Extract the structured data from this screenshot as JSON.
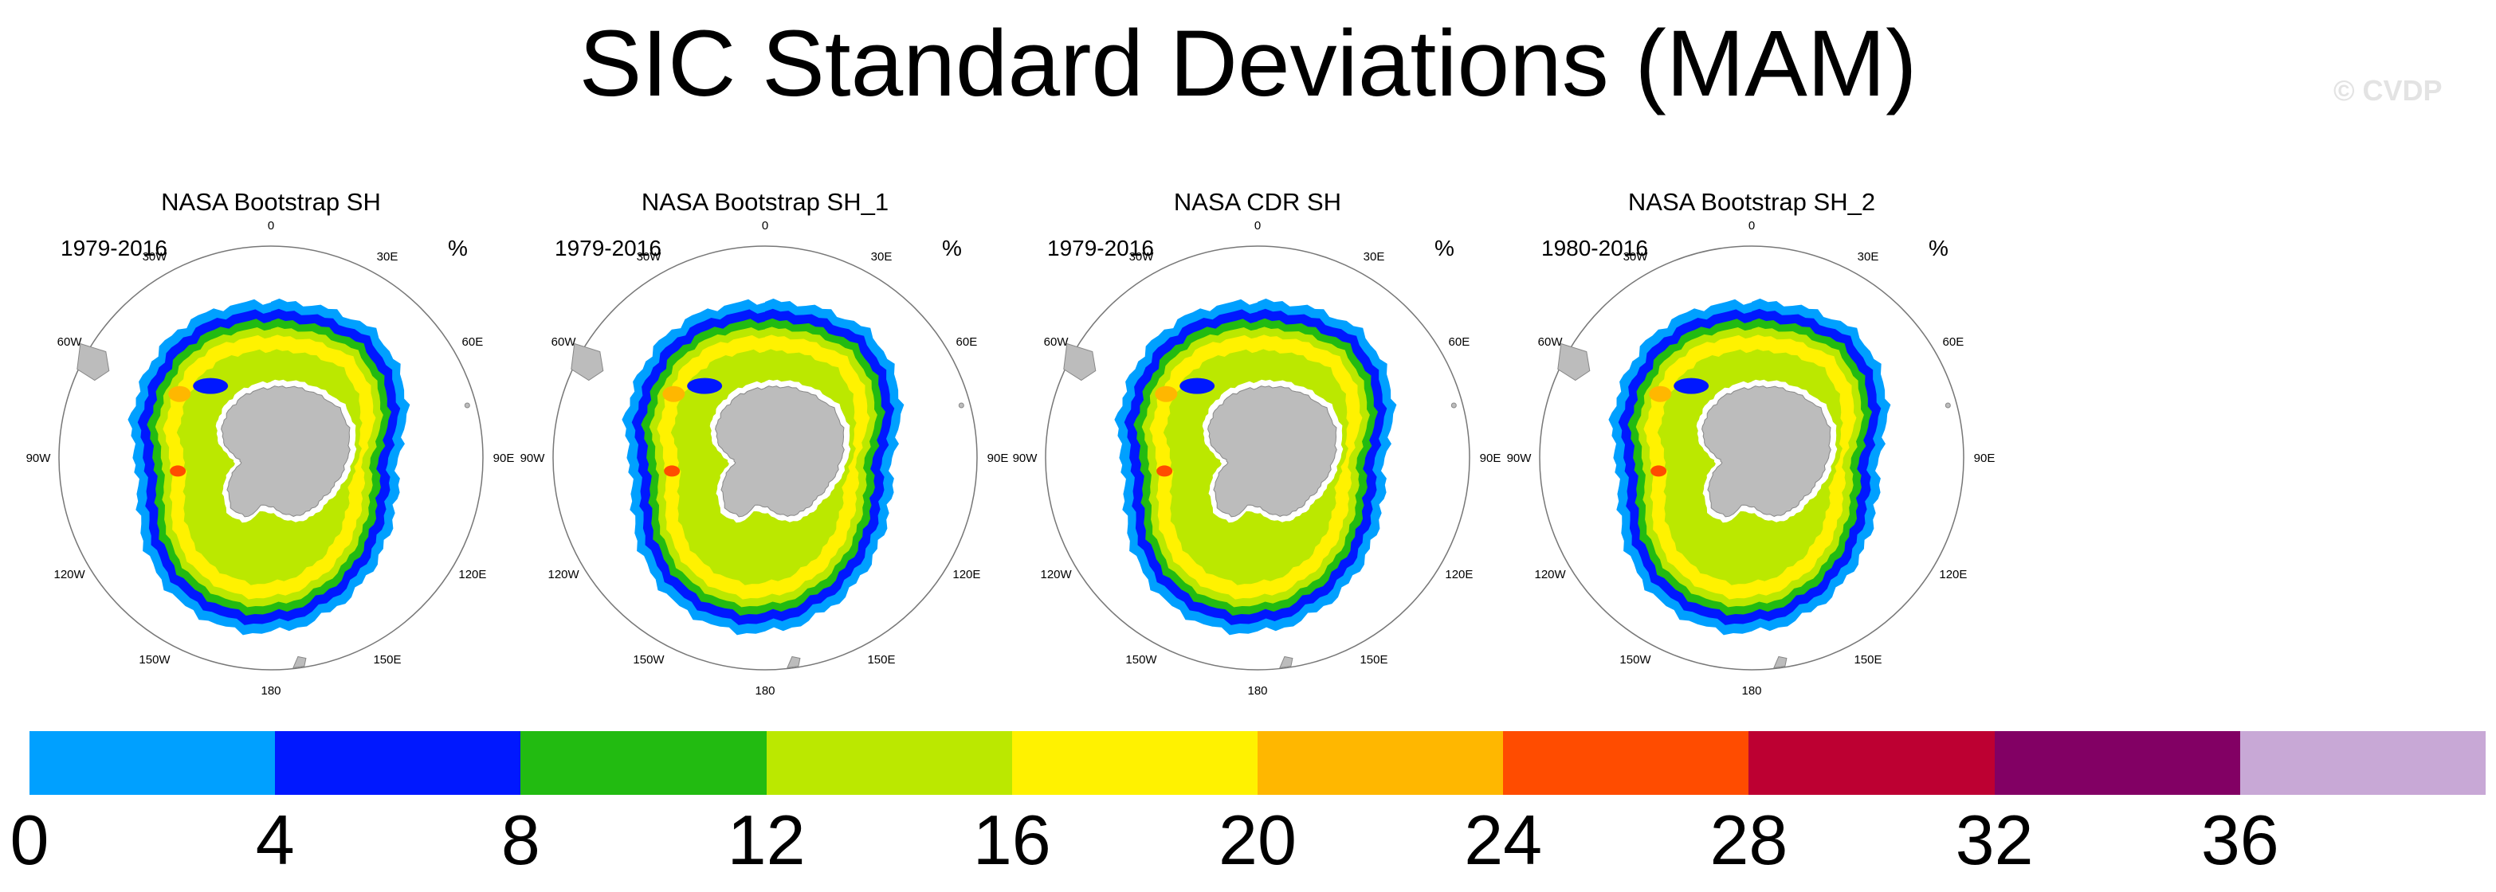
{
  "title": "SIC Standard Deviations (MAM)",
  "watermark": "© CVDP",
  "units": "%",
  "longitude_labels": [
    "0",
    "30E",
    "60E",
    "90E",
    "120E",
    "150E",
    "180",
    "150W",
    "120W",
    "90W",
    "60W",
    "30W"
  ],
  "panels": [
    {
      "title": "NASA Bootstrap SH",
      "period": "1979-2016"
    },
    {
      "title": "NASA Bootstrap SH_1",
      "period": "1979-2016"
    },
    {
      "title": "NASA CDR SH",
      "period": "1979-2016"
    },
    {
      "title": "NASA Bootstrap SH_2",
      "period": "1980-2016"
    }
  ],
  "colorbar": {
    "levels": [
      "0",
      "4",
      "8",
      "12",
      "16",
      "20",
      "24",
      "28",
      "32",
      "36"
    ],
    "colors": [
      "#00a0ff",
      "#0018ff",
      "#22bb11",
      "#bbe800",
      "#fff200",
      "#ffb700",
      "#ff4c00",
      "#bd0032",
      "#820064",
      "#c8a8d6"
    ]
  },
  "land_color": "#bcbcbc"
}
